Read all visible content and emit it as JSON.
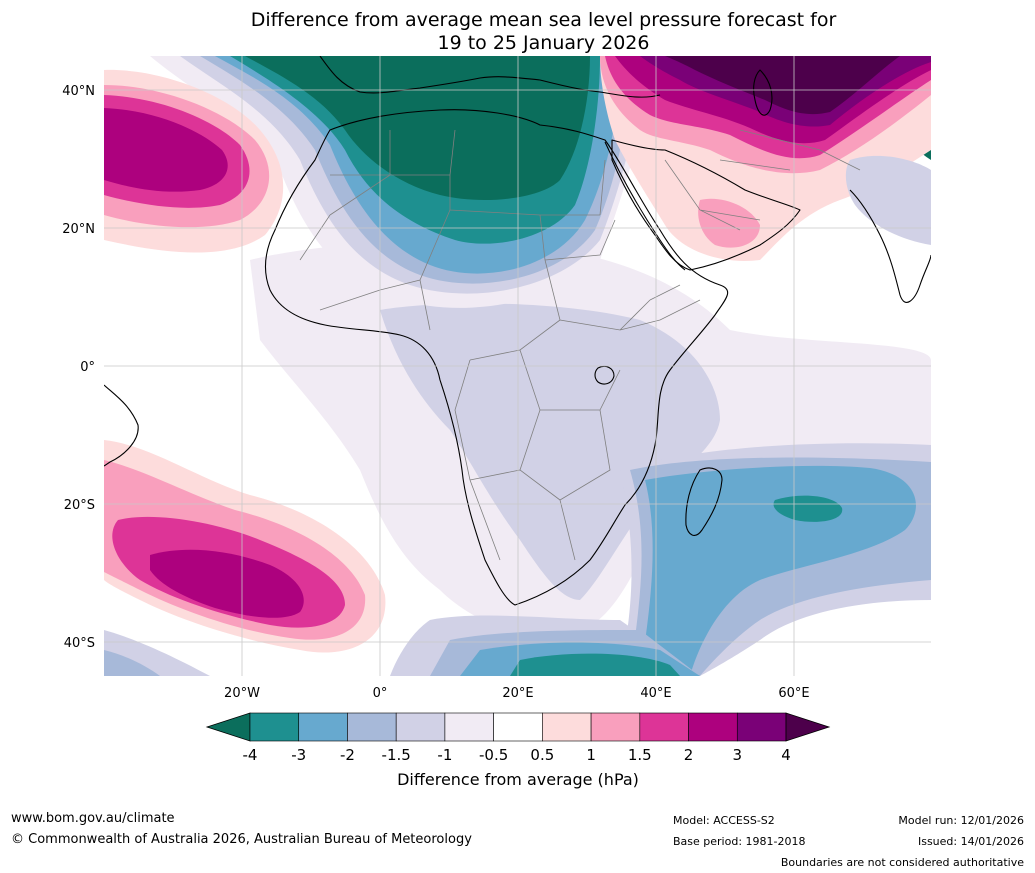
{
  "title": {
    "line1": "Difference from average mean sea level pressure forecast for",
    "line2": "19 to 25 January 2026"
  },
  "map": {
    "lat_labels": [
      "40°N",
      "20°N",
      "0°",
      "20°S",
      "40°S"
    ],
    "lon_labels": [
      "20°W",
      "0°",
      "20°E",
      "40°E",
      "60°E"
    ],
    "colors": {
      "ocean_default": "#ffffff",
      "grid": "#c8c8c8",
      "coast": "#000000",
      "border": "#808080"
    }
  },
  "colorbar": {
    "ticks": [
      "-4",
      "-3",
      "-2",
      "-1.5",
      "-1",
      "-0.5",
      "0.5",
      "1",
      "1.5",
      "2",
      "3",
      "4"
    ],
    "colors": [
      "#0b6e5c",
      "#1e9090",
      "#67a9cf",
      "#a7b9d9",
      "#d1d1e6",
      "#f1ebf4",
      "#ffffff",
      "#fddcdc",
      "#f99fbd",
      "#dd3497",
      "#ad017e",
      "#7a0177",
      "#4d004b"
    ],
    "label": "Difference from average (hPa)"
  },
  "footer": {
    "website": "www.bom.gov.au/climate",
    "copyright": "© Commonwealth of Australia 2026, Australian Bureau of Meteorology",
    "model": "Model: ACCESS-S2",
    "base_period": "Base period: 1981-2018",
    "model_run": "Model run: 12/01/2026",
    "issued": "Issued: 14/01/2026",
    "disclaimer": "Boundaries are not considered authoritative"
  }
}
